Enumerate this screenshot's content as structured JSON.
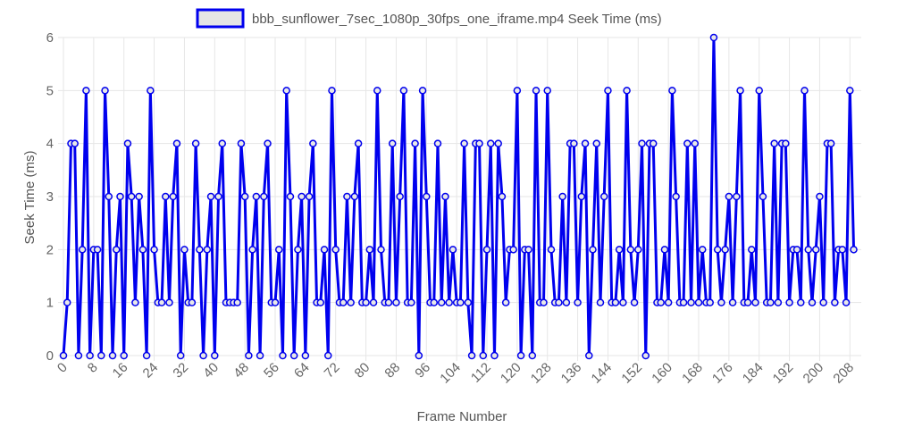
{
  "chart_data": {
    "type": "line",
    "xlabel": "Frame Number",
    "ylabel": "Seek Time (ms)",
    "ylim": [
      0,
      6
    ],
    "xlim": [
      0,
      211
    ],
    "grid": true,
    "legend_position": "top",
    "x_ticks": [
      "0",
      "8",
      "16",
      "24",
      "32",
      "40",
      "48",
      "56",
      "64",
      "72",
      "80",
      "88",
      "96",
      "104",
      "112",
      "120",
      "128",
      "136",
      "144",
      "152",
      "160",
      "168",
      "176",
      "184",
      "192",
      "200",
      "208"
    ],
    "y_ticks": [
      "0",
      "1",
      "2",
      "3",
      "4",
      "5",
      "6"
    ],
    "series": [
      {
        "name": "bbb_sunflower_7sec_1080p_30fps_one_iframe.mp4 Seek Time (ms)",
        "color": "#0000ee",
        "values": [
          0,
          1,
          4,
          4,
          0,
          2,
          5,
          0,
          2,
          2,
          0,
          5,
          3,
          0,
          2,
          3,
          0,
          4,
          3,
          1,
          3,
          2,
          0,
          5,
          2,
          1,
          1,
          3,
          1,
          3,
          4,
          0,
          2,
          1,
          1,
          4,
          2,
          0,
          2,
          3,
          0,
          3,
          4,
          1,
          1,
          1,
          1,
          4,
          3,
          0,
          2,
          3,
          0,
          3,
          4,
          1,
          1,
          2,
          0,
          5,
          3,
          0,
          2,
          3,
          0,
          3,
          4,
          1,
          1,
          2,
          0,
          5,
          2,
          1,
          1,
          3,
          1,
          3,
          4,
          1,
          1,
          2,
          1,
          5,
          2,
          1,
          1,
          4,
          1,
          3,
          5,
          1,
          1,
          4,
          0,
          5,
          3,
          1,
          1,
          4,
          1,
          3,
          1,
          2,
          1,
          1,
          4,
          1,
          0,
          4,
          4,
          0,
          2,
          4,
          0,
          4,
          3,
          1,
          2,
          2,
          5,
          0,
          2,
          2,
          0,
          5,
          1,
          1,
          5,
          2,
          1,
          1,
          3,
          1,
          4,
          4,
          1,
          3,
          4,
          0,
          2,
          4,
          1,
          3,
          5,
          1,
          1,
          2,
          1,
          5,
          2,
          1,
          2,
          4,
          0,
          4,
          4,
          1,
          1,
          2,
          1,
          5,
          3,
          1,
          1,
          4,
          1,
          4,
          1,
          2,
          1,
          1,
          6,
          2,
          1,
          2,
          3,
          1,
          3,
          5,
          1,
          1,
          2,
          1,
          5,
          3,
          1,
          1,
          4,
          1,
          4,
          4,
          1,
          2,
          2,
          1,
          5,
          2,
          1,
          2,
          3,
          1,
          4,
          4,
          1,
          2,
          2,
          1,
          5,
          2
        ]
      }
    ]
  }
}
